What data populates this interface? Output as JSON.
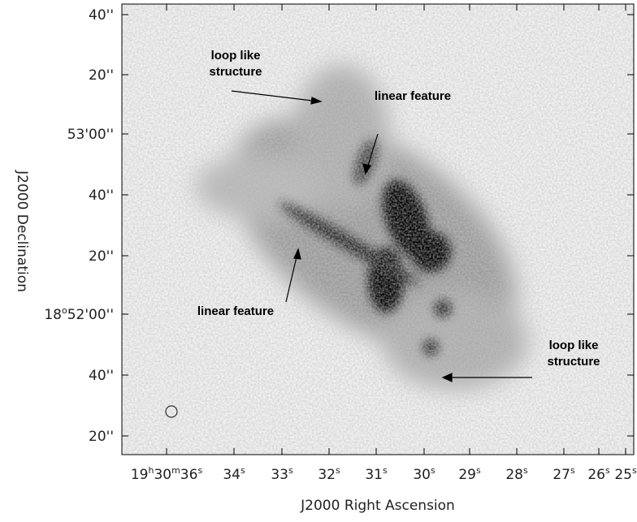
{
  "axes": {
    "x_label": "J2000 Right Ascension",
    "y_label": "J2000 Declination",
    "x_ticks": [
      [
        "19",
        "h",
        "30",
        "m",
        "36",
        "s"
      ],
      [
        "34",
        "s"
      ],
      [
        "33",
        "s"
      ],
      [
        "32",
        "s"
      ],
      [
        "31",
        "s"
      ],
      [
        "30",
        "s"
      ],
      [
        "29",
        "s"
      ],
      [
        "28",
        "s"
      ],
      [
        "27",
        "s"
      ],
      [
        "26",
        "s"
      ],
      [
        "25",
        "s"
      ]
    ],
    "y_ticks": [
      [
        "40''"
      ],
      [
        "20''"
      ],
      [
        "53'00''"
      ],
      [
        "40''"
      ],
      [
        "20''"
      ],
      [
        "18",
        "o",
        "52'00''"
      ],
      [
        "40''"
      ],
      [
        "20''"
      ]
    ]
  },
  "annotations": [
    {
      "lines": [
        "loop like",
        "structure"
      ]
    },
    {
      "lines": [
        "linear feature"
      ]
    },
    {
      "lines": [
        "linear feature"
      ]
    },
    {
      "lines": [
        "loop like",
        "structure"
      ]
    }
  ]
}
